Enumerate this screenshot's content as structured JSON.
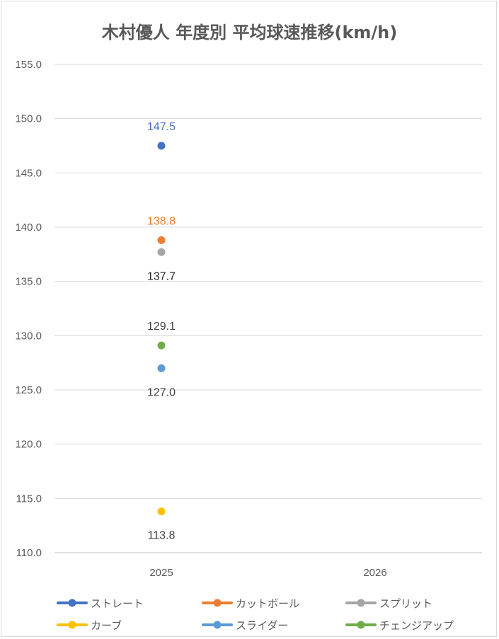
{
  "chart_data": {
    "type": "line",
    "title": "木村優人 年度別 平均球速推移(km/h)",
    "categories": [
      "2025",
      "2026"
    ],
    "ylim": [
      110,
      155
    ],
    "yticks": [
      "110.0",
      "115.0",
      "120.0",
      "125.0",
      "130.0",
      "135.0",
      "140.0",
      "145.0",
      "150.0",
      "155.0"
    ],
    "grid": true,
    "legend_position": "bottom",
    "series": [
      {
        "name": "ストレート",
        "color": "#4472c4",
        "values": [
          147.5,
          null
        ],
        "labels": [
          "147.5",
          ""
        ],
        "label_pos": "above",
        "label_color": "#4472c4"
      },
      {
        "name": "カットボール",
        "color": "#ed7d31",
        "values": [
          138.8,
          null
        ],
        "labels": [
          "138.8",
          ""
        ],
        "label_pos": "above",
        "label_color": "#ed7d31"
      },
      {
        "name": "スプリット",
        "color": "#a5a5a5",
        "values": [
          137.7,
          null
        ],
        "labels": [
          "137.7",
          ""
        ],
        "label_pos": "below",
        "label_color": "#262626"
      },
      {
        "name": "カーブ",
        "color": "#ffc000",
        "values": [
          113.8,
          null
        ],
        "labels": [
          "113.8",
          ""
        ],
        "label_pos": "below",
        "label_color": "#404040"
      },
      {
        "name": "スライダー",
        "color": "#5b9bd5",
        "values": [
          127.0,
          null
        ],
        "labels": [
          "127.0",
          ""
        ],
        "label_pos": "below",
        "label_color": "#404040"
      },
      {
        "name": "チェンジアップ",
        "color": "#70ad47",
        "values": [
          129.1,
          null
        ],
        "labels": [
          "129.1",
          ""
        ],
        "label_pos": "above",
        "label_color": "#404040"
      }
    ]
  }
}
